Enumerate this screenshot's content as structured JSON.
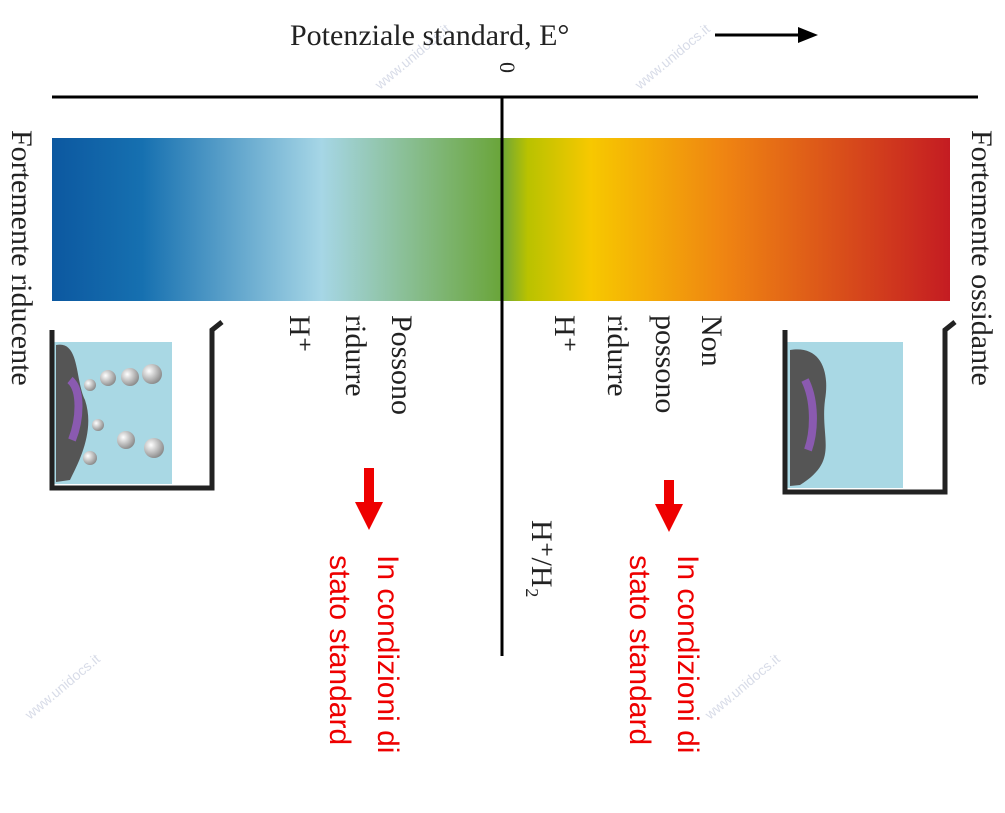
{
  "title": "Potenziale standard, E°",
  "zero": "0",
  "left_label": "Fortemente riducente",
  "right_label": "Fortemente ossidante",
  "left_group": {
    "lines": [
      "Possono",
      "ridurre",
      "H⁺"
    ]
  },
  "right_group": {
    "lines": [
      "Non",
      "possono",
      "ridurre",
      "H⁺"
    ]
  },
  "couple": "H⁺/H₂",
  "left_note": {
    "lines": [
      "In condizioni di",
      "stato standard"
    ]
  },
  "right_note": {
    "lines": [
      "In condizioni di",
      "stato standard"
    ]
  },
  "watermark": "www.unidocs.it"
}
